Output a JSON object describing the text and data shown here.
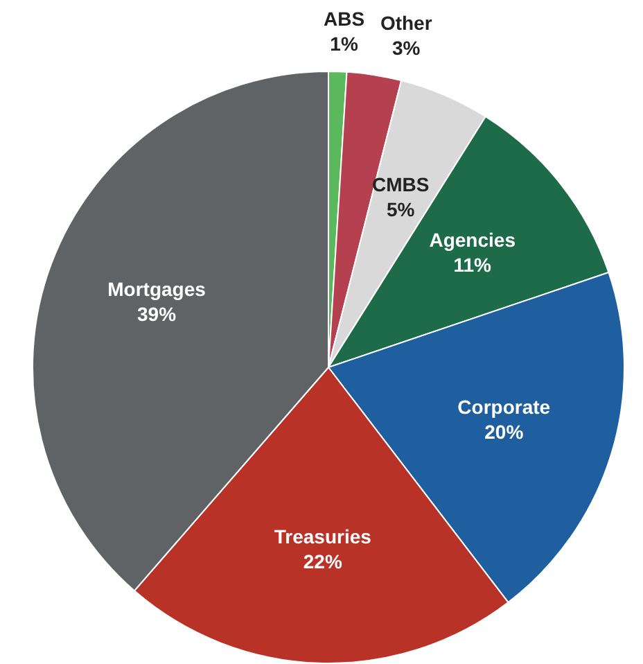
{
  "chart_data": {
    "type": "pie",
    "categories": [
      "ABS",
      "Other",
      "CMBS",
      "Agencies",
      "Corporate",
      "Treasuries",
      "Mortgages"
    ],
    "values": [
      1,
      3,
      5,
      11,
      20,
      22,
      39
    ],
    "colors": [
      "#5cb85c",
      "#b5404f",
      "#d9d9d9",
      "#1e6b4a",
      "#1f5fa0",
      "#b83227",
      "#5f6366"
    ],
    "value_labels": [
      "1%",
      "3%",
      "5%",
      "11%",
      "20%",
      "22%",
      "39%"
    ],
    "legend": false
  }
}
